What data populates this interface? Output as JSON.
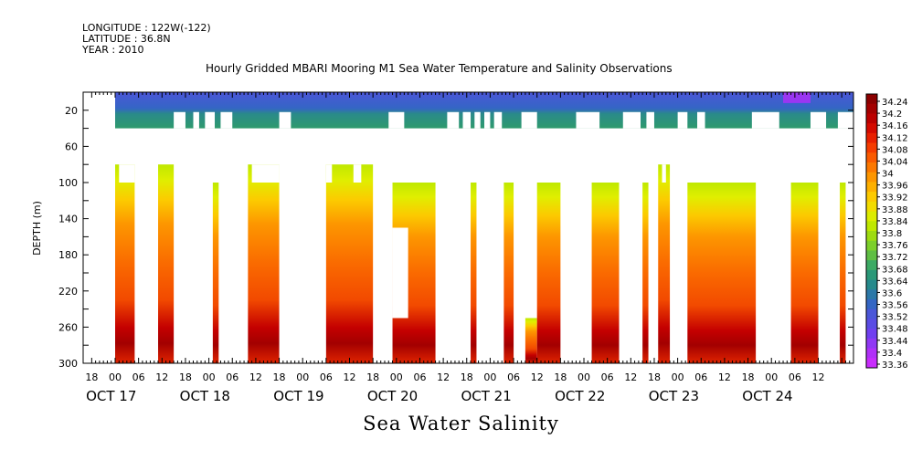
{
  "header": {
    "longitude": "LONGITUDE : 122W(-122)",
    "latitude": "LATITUDE : 36.8N",
    "year": "YEAR : 2010"
  },
  "chart_data": {
    "type": "heatmap",
    "title": "Hourly Gridded MBARI Mooring M1 Sea Water Temperature and Salinity Observations",
    "xlabel": "Sea Water Salinity",
    "ylabel": "DEPTH (m)",
    "y_range": [
      0,
      300
    ],
    "y_inverted": true,
    "y_ticks": [
      20,
      60,
      100,
      140,
      180,
      220,
      260,
      300
    ],
    "x_range_hours": [
      0,
      189
    ],
    "x_tick_hour_labels": [
      "18",
      "00",
      "06",
      "12",
      "18",
      "00",
      "06",
      "12",
      "18",
      "00",
      "06",
      "12",
      "18",
      "00",
      "06",
      "12",
      "18",
      "00",
      "06",
      "12",
      "18",
      "00",
      "06",
      "12",
      "18",
      "00",
      "06",
      "12",
      "18",
      "00",
      "06",
      "12"
    ],
    "x_day_labels": [
      "OCT 17",
      "OCT 18",
      "OCT 19",
      "OCT 20",
      "OCT 21",
      "OCT 22",
      "OCT 23",
      "OCT 24"
    ],
    "colorbar": {
      "levels": [
        "34.24",
        "34.2",
        "34.16",
        "34.12",
        "34.08",
        "34.04",
        "34",
        "33.96",
        "33.92",
        "33.88",
        "33.84",
        "33.8",
        "33.76",
        "33.72",
        "33.68",
        "33.64",
        "33.6",
        "33.56",
        "33.52",
        "33.48",
        "33.44",
        "33.4",
        "33.36"
      ],
      "colors": [
        "#8b0000",
        "#a30000",
        "#bb0000",
        "#d40a00",
        "#e82000",
        "#f53c00",
        "#fa5a00",
        "#fc7800",
        "#fd9600",
        "#fdb000",
        "#fcca00",
        "#f2dc00",
        "#dcec00",
        "#bfe800",
        "#9edb10",
        "#7ccf2a",
        "#5fbe44",
        "#3caa64",
        "#2a9878",
        "#268a8c",
        "#2c78a8",
        "#3466c4",
        "#4b56d8",
        "#5a4ce4",
        "#7040f0",
        "#9038f4",
        "#b030f8",
        "#c82cfc"
      ]
    },
    "surface_band": {
      "depth_range": [
        0,
        40
      ],
      "value_range": [
        33.48,
        33.68
      ],
      "gaps_hours": [
        [
          15,
          18
        ],
        [
          20,
          21.5
        ],
        [
          23,
          25.5
        ],
        [
          27,
          30
        ],
        [
          42,
          45
        ],
        [
          70,
          74
        ],
        [
          85,
          88
        ],
        [
          89,
          91
        ],
        [
          92,
          93.5
        ],
        [
          94.5,
          96
        ],
        [
          97,
          99
        ],
        [
          104,
          108
        ],
        [
          118,
          124
        ],
        [
          130,
          134.5
        ],
        [
          136,
          138
        ],
        [
          144,
          146.5
        ],
        [
          149,
          151
        ],
        [
          163,
          170
        ],
        [
          178,
          182
        ],
        [
          185,
          189
        ]
      ]
    },
    "deep_segments": [
      {
        "start": 0,
        "end": 5,
        "top": 80,
        "notch": 5
      },
      {
        "start": 11,
        "end": 15,
        "top": 80
      },
      {
        "start": 25,
        "end": 26.5,
        "top": 100
      },
      {
        "start": 34,
        "end": 42,
        "top": 80,
        "notch": 4
      },
      {
        "start": 54,
        "end": 66,
        "top": 80,
        "notches": [
          [
            54,
            55.5
          ],
          [
            61,
            63
          ]
        ]
      },
      {
        "start": 71,
        "end": 82,
        "top": 100,
        "gap_depth": [
          150,
          250
        ],
        "gap_x": [
          71,
          75
        ]
      },
      {
        "start": 91,
        "end": 92.5,
        "top": 100
      },
      {
        "start": 99.5,
        "end": 102,
        "top": 100
      },
      {
        "start": 105,
        "end": 108,
        "top": 250
      },
      {
        "start": 108,
        "end": 114,
        "top": 100
      },
      {
        "start": 122,
        "end": 129,
        "top": 100
      },
      {
        "start": 135,
        "end": 136.5,
        "top": 100
      },
      {
        "start": 139,
        "end": 142,
        "top": 80,
        "notches": [
          [
            140,
            141
          ]
        ]
      },
      {
        "start": 146.5,
        "end": 164,
        "top": 100
      },
      {
        "start": 173,
        "end": 180,
        "top": 100
      },
      {
        "start": 185.5,
        "end": 187,
        "top": 100
      }
    ]
  }
}
